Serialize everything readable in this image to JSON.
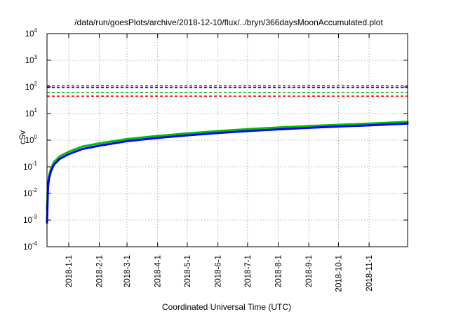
{
  "chart_data": {
    "type": "line",
    "title": "/data/run/goesPlots/archive/2018-12-10/flux/../bryn/366daysMoonAccumulated.plot",
    "xlabel": "Coordinated Universal Time (UTC)",
    "ylabel": "cSv",
    "yscale": "log",
    "ylim_exponents": [
      -4,
      4
    ],
    "y_tick_base": "10",
    "y_tick_exponents": [
      "-4",
      "-3",
      "-2",
      "-1",
      "0",
      "1",
      "2",
      "3",
      "4"
    ],
    "x_start_date": "2017-12-10",
    "x_end_date": "2018-12-10",
    "x_ticks": [
      "2018-1-1",
      "2018-2-1",
      "2018-3-1",
      "2018-4-1",
      "2018-5-1",
      "2018-6-1",
      "2018-7-1",
      "2018-8-1",
      "2018-9-1",
      "2018-10-1",
      "2018-11-1"
    ],
    "grid": true,
    "series": [
      {
        "color": "#00c000",
        "x": [
          "2017-12-10",
          "2017-12-11",
          "2017-12-12",
          "2017-12-14",
          "2017-12-17",
          "2017-12-23",
          "2018-01-01",
          "2018-01-15",
          "2018-02-01",
          "2018-03-01",
          "2018-04-01",
          "2018-05-01",
          "2018-06-01",
          "2018-07-01",
          "2018-08-01",
          "2018-09-01",
          "2018-10-01",
          "2018-11-01",
          "2018-12-10"
        ],
        "y": [
          0.0025,
          0.021,
          0.045,
          0.085,
          0.15,
          0.25,
          0.37,
          0.58,
          0.76,
          1.1,
          1.45,
          1.8,
          2.2,
          2.6,
          3.0,
          3.4,
          3.8,
          4.2,
          4.9
        ]
      },
      {
        "color": "#0000ff",
        "x": [
          "2017-12-10",
          "2017-12-11",
          "2017-12-12",
          "2017-12-14",
          "2017-12-17",
          "2017-12-23",
          "2018-01-01",
          "2018-01-15",
          "2018-02-01",
          "2018-03-01",
          "2018-04-01",
          "2018-05-01",
          "2018-06-01",
          "2018-07-01",
          "2018-08-01",
          "2018-09-01",
          "2018-10-01",
          "2018-11-01",
          "2018-12-10"
        ],
        "y": [
          0.0008,
          0.016,
          0.036,
          0.068,
          0.12,
          0.2,
          0.3,
          0.47,
          0.62,
          0.92,
          1.22,
          1.52,
          1.85,
          2.2,
          2.55,
          2.9,
          3.25,
          3.6,
          4.2
        ]
      }
    ],
    "reference_lines": [
      {
        "color": "#9400d3",
        "y": 110
      },
      {
        "color": "#0000ff",
        "y": 95
      },
      {
        "color": "#00c000",
        "y": 62
      },
      {
        "color": "#ff0000",
        "y": 45
      }
    ]
  }
}
